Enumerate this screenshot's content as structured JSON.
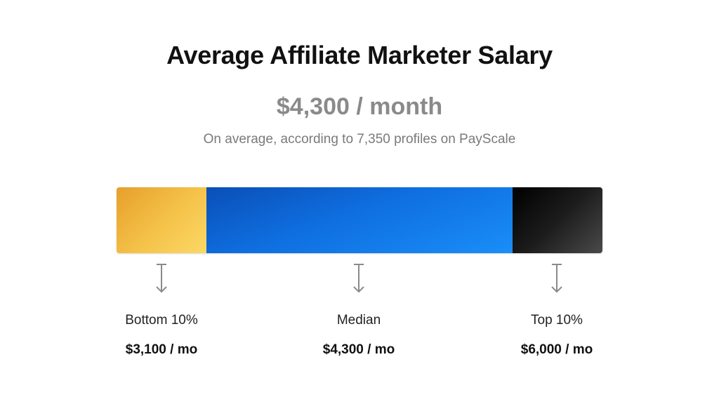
{
  "title": "Average Affiliate Marketer Salary",
  "headline": "$4,300 / month",
  "subtitle": "On average, according to 7,350 profiles on PayScale",
  "colors": {
    "bottom": "#f0b23c",
    "median": "#1273e8",
    "top": "#1a1a1a"
  },
  "chart_data": {
    "type": "bar",
    "title": "Average Affiliate Marketer Salary",
    "unit": "$ / mo",
    "categories": [
      "Bottom 10%",
      "Median",
      "Top 10%"
    ],
    "values": [
      3100,
      4300,
      6000
    ],
    "value_labels": [
      "$3,100 / mo",
      "$4,300 / mo",
      "$6,000 / mo"
    ],
    "segment_shares": [
      0.185,
      0.63,
      0.185
    ]
  }
}
